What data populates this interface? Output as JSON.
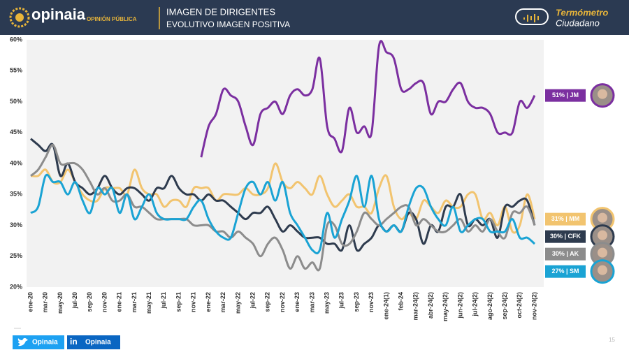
{
  "header": {
    "brand": "opinaia",
    "brand_sub": "OPINIÓN PÚBLICA",
    "title": "IMAGEN DE DIRIGENTES",
    "subtitle": "EVOLUTIVO IMAGEN POSITIVA",
    "badge_line1": "Termómetro",
    "badge_line2": "Ciudadano"
  },
  "footer": {
    "twitter": "Opinaia",
    "linkedin_icon": "in",
    "linkedin": "Opinaia",
    "page": "15"
  },
  "chart_data": {
    "type": "line",
    "categories": [
      "ene-20",
      null,
      "mar-20",
      null,
      "may-20",
      null,
      "jul-20",
      null,
      "sep-20",
      null,
      "nov-20",
      null,
      "ene-21",
      null,
      "mar-21",
      null,
      "may-21",
      null,
      "jul-21",
      null,
      "sep-21",
      null,
      "nov-21",
      null,
      "ene-22",
      null,
      "mar-22",
      null,
      "may-22",
      null,
      "jul-22",
      null,
      "sep-22",
      null,
      "nov-22",
      null,
      "ene-23",
      null,
      "mar-23",
      null,
      "may-23",
      null,
      "jul-23",
      null,
      "sep-23",
      null,
      "nov-23",
      null,
      "ene-24(1)",
      null,
      "feb-24",
      null,
      "mar-24(2)",
      null,
      "abr-24(2)",
      null,
      "may-24(2)",
      null,
      "jun-24(2)",
      null,
      "jul-24(2)",
      null,
      "ago-24(2)",
      null,
      "sep-24(2)",
      null,
      "oct-24(2)",
      null,
      "nov-24(2)"
    ],
    "ylim": [
      20,
      60
    ],
    "yticks": [
      {
        "value": 20,
        "label": "20%"
      },
      {
        "value": 25,
        "label": "25%"
      },
      {
        "value": 30,
        "label": "30%"
      },
      {
        "value": 35,
        "label": "35%"
      },
      {
        "value": 40,
        "label": "40%"
      },
      {
        "value": 45,
        "label": "45%"
      },
      {
        "value": 50,
        "label": "50%"
      },
      {
        "value": 55,
        "label": "55%"
      },
      {
        "value": 60,
        "label": "60%"
      }
    ],
    "grid": false,
    "series": [
      {
        "name": "51% | JM",
        "color": "#7b2fa0",
        "values": [
          null,
          null,
          null,
          null,
          null,
          null,
          null,
          null,
          null,
          null,
          null,
          null,
          null,
          null,
          null,
          null,
          null,
          null,
          null,
          null,
          null,
          null,
          null,
          41,
          46,
          48,
          52,
          51,
          50,
          46,
          43,
          48,
          49,
          50,
          48,
          51,
          52,
          51,
          52,
          57,
          46,
          44,
          42,
          49,
          45,
          46,
          45,
          59,
          58,
          57,
          52,
          52,
          53,
          53,
          48,
          50,
          50,
          52,
          53,
          50,
          49,
          49,
          48,
          45,
          45,
          45,
          50,
          49,
          51
        ]
      },
      {
        "name": "31% | MM",
        "color": "#f2c46f",
        "values": [
          38,
          38,
          39,
          37,
          37,
          39,
          37,
          35,
          34,
          34,
          36,
          36,
          36,
          35,
          39,
          36,
          35,
          35,
          33,
          34,
          34,
          33,
          36,
          36,
          36,
          34,
          35,
          35,
          35,
          36,
          35,
          35,
          36,
          40,
          37,
          36,
          37,
          36,
          35,
          38,
          35,
          33,
          34,
          35,
          33,
          33,
          32,
          36,
          38,
          33,
          31,
          32,
          31,
          34,
          33,
          32,
          34,
          33,
          33,
          35,
          35,
          31,
          32,
          30,
          33,
          29,
          30,
          35,
          31
        ]
      },
      {
        "name": "30% | CFK",
        "color": "#2e3b4e",
        "values": [
          44,
          43,
          42,
          43,
          38,
          40,
          37,
          36,
          35,
          36,
          38,
          36,
          35,
          36,
          36,
          35,
          34,
          36,
          36,
          38,
          36,
          35,
          35,
          34,
          35,
          34,
          34,
          33,
          32,
          31,
          32,
          32,
          33,
          31,
          29,
          30,
          29,
          28,
          28,
          28,
          27,
          27,
          26,
          30,
          26,
          27,
          28,
          30,
          29,
          30,
          29,
          32,
          31,
          27,
          30,
          29,
          33,
          33,
          35,
          30,
          31,
          30,
          31,
          28,
          33,
          33,
          34,
          34,
          30
        ]
      },
      {
        "name": "30% | AK",
        "color": "#8c8c8c",
        "values": [
          38,
          39,
          41,
          43,
          40,
          40,
          40,
          39,
          37,
          35,
          36,
          34,
          34,
          35,
          33,
          33,
          32,
          31,
          31,
          31,
          31,
          31,
          30,
          30,
          30,
          29,
          29,
          28,
          29,
          28,
          27,
          25,
          27,
          28,
          26,
          23,
          25,
          23,
          24,
          23,
          30,
          30,
          27,
          27,
          29,
          32,
          31,
          30,
          31,
          32,
          33,
          33,
          30,
          31,
          30,
          29,
          29,
          30,
          31,
          29,
          30,
          29,
          31,
          29,
          28,
          32,
          32,
          33,
          30
        ]
      },
      {
        "name": "27% | SM",
        "color": "#1aa3d4",
        "values": [
          32,
          33,
          38,
          37,
          37,
          35,
          37,
          34,
          32,
          36,
          35,
          36,
          32,
          35,
          31,
          33,
          35,
          32,
          31,
          31,
          31,
          31,
          33,
          34,
          31,
          29,
          28,
          28,
          32,
          36,
          37,
          35,
          37,
          34,
          37,
          32,
          30,
          28,
          26,
          26,
          32,
          28,
          31,
          34,
          38,
          33,
          38,
          31,
          29,
          30,
          29,
          33,
          36,
          36,
          33,
          31,
          30,
          33,
          29,
          30,
          31,
          31,
          29,
          29,
          29,
          31,
          28,
          28,
          27
        ]
      }
    ]
  }
}
